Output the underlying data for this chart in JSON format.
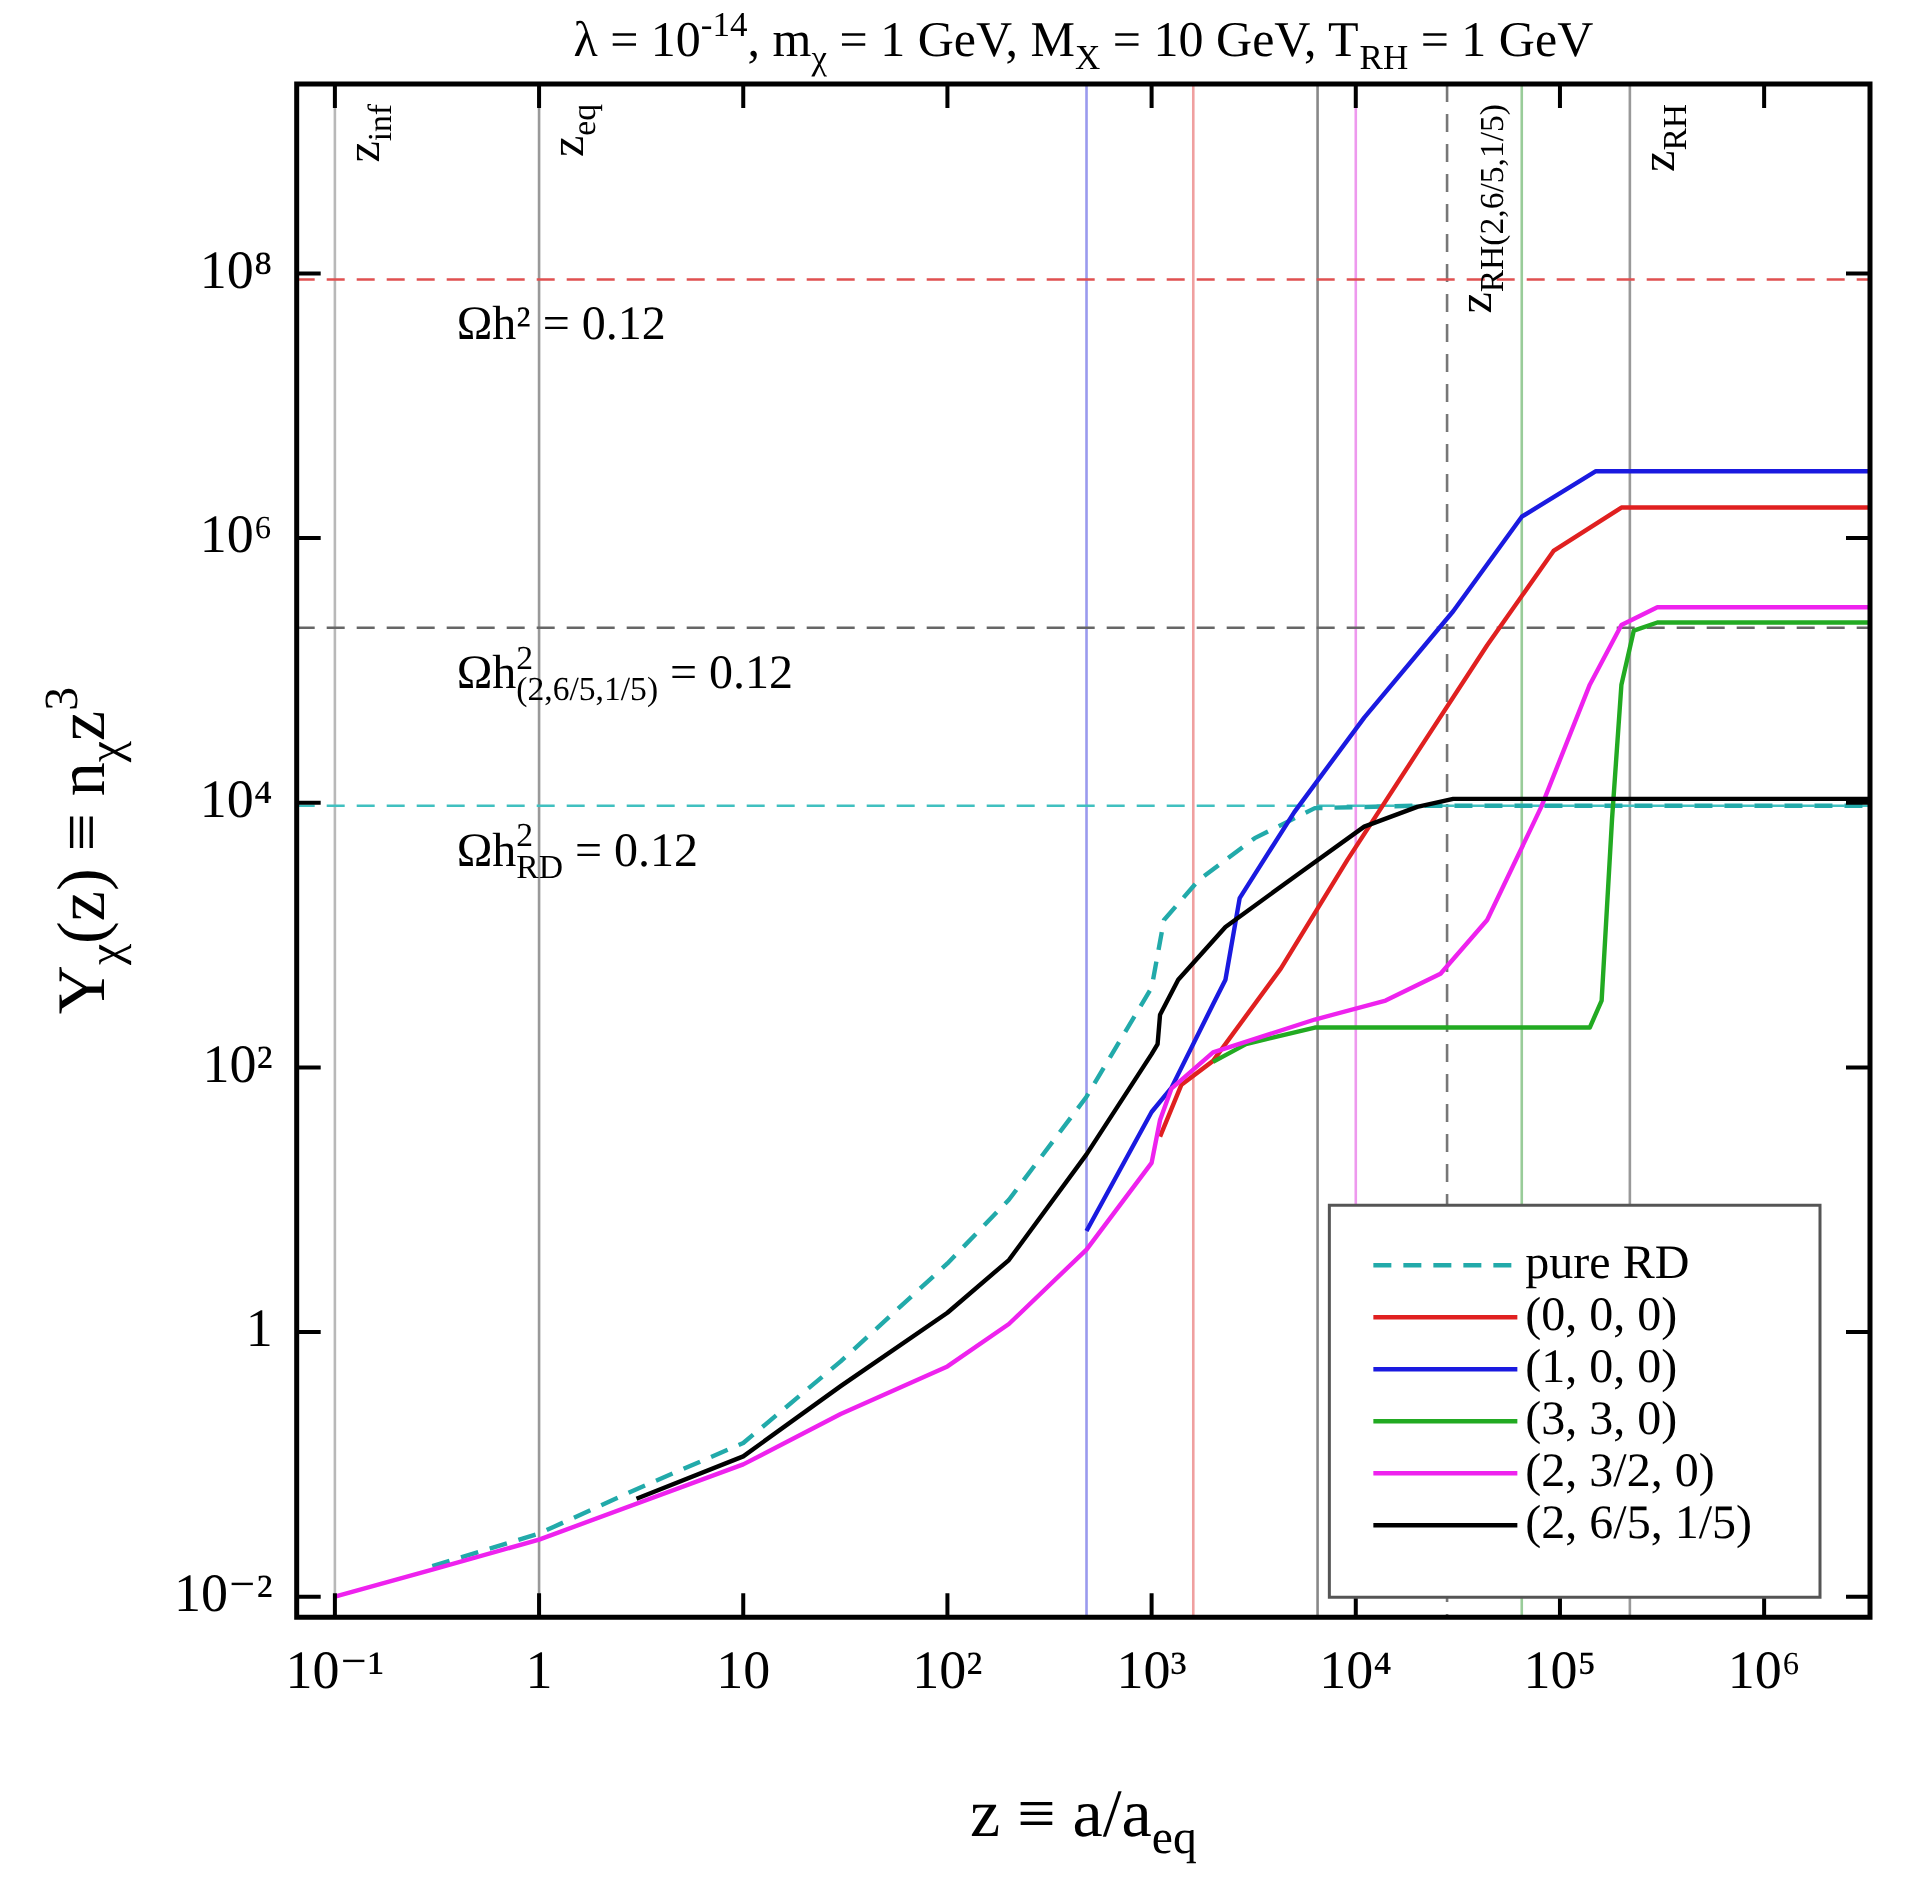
{
  "chart_data": {
    "type": "line",
    "title": "λ = 10$^{-14}$, m$_{χ}$ = 1 GeV, M$_{X}$ = 10 GeV, T$_{RH}$ = 1 GeV",
    "xlabel": "z ≡ a/a$_{eq}$",
    "ylabel": "Y$_{χ}$(z) ≡ n$_{χ}$z$^{3}$",
    "log": "xy",
    "marker": "none",
    "legend": "bottom right",
    "xlim": [
      0.065,
      3300000
    ],
    "ylim": [
      0.007,
      2700000000
    ],
    "xticks": [
      {
        "value": 0.1,
        "label": "10⁻¹"
      },
      1,
      10,
      {
        "value": 100,
        "label": "10²"
      },
      {
        "value": 1000,
        "label": "10³"
      },
      {
        "value": 10000,
        "label": "10⁴"
      },
      {
        "value": 100000,
        "label": "10⁵"
      },
      {
        "value": 1000000,
        "label": "10⁶"
      }
    ],
    "yticks": [
      {
        "value": 0.01,
        "label": "10⁻²"
      },
      1,
      {
        "value": 100,
        "label": "10²"
      },
      {
        "value": 10000,
        "label": "10⁴"
      },
      {
        "value": 1000000,
        "label": "10⁶"
      },
      {
        "value": 100000000,
        "label": "10⁸"
      }
    ],
    "series": [
      {
        "name": "pure RD",
        "color": "#22aaaa",
        "line_style": "dashed",
        "x": [
          0.3,
          1,
          3,
          10,
          30,
          100,
          200,
          480,
          1000,
          1150,
          1700,
          3200,
          6300,
          20000,
          3300000
        ],
        "values": [
          0.017,
          0.03,
          0.065,
          0.145,
          0.6,
          3.3,
          10,
          60,
          400,
          1300,
          2600,
          5400,
          9100,
          9500,
          9500
        ]
      },
      {
        "name": "(0, 0, 0)",
        "color": "#e02020",
        "line_style": "solid",
        "x": [
          1100,
          1400,
          2000,
          4300,
          9100,
          20000,
          44000,
          93000,
          200000,
          3300000
        ],
        "values": [
          30,
          74,
          112,
          560,
          3700,
          24000,
          155000,
          800000,
          1700000,
          1700000
        ]
      },
      {
        "name": "(1, 0, 0)",
        "color": "#1a1ae0",
        "line_style": "solid",
        "x": [
          480,
          1000,
          1250,
          2000,
          2300,
          2700,
          5000,
          11000,
          30000,
          65000,
          150000,
          3300000
        ],
        "values": [
          5.8,
          46,
          70,
          300,
          460,
          1900,
          8500,
          44000,
          280000,
          1450000,
          3200000,
          3200000
        ]
      },
      {
        "name": "(3, 3, 0)",
        "color": "#22aa22",
        "line_style": "solid",
        "x": [
          2000,
          2900,
          6300,
          140000,
          160000,
          180000,
          200000,
          230000,
          300000,
          3300000
        ],
        "values": [
          110,
          150,
          200,
          200,
          320,
          7600,
          78000,
          200000,
          230000,
          230000
        ]
      },
      {
        "name": "(2, 3/2, 0)",
        "color": "#ee22ee",
        "line_style": "solid",
        "x": [
          0.1,
          0.3,
          1,
          10,
          30,
          100,
          200,
          480,
          1000,
          1100,
          1250,
          2000,
          6300,
          14000,
          26000,
          44000,
          81000,
          140000,
          200000,
          300000,
          3300000
        ],
        "values": [
          0.01,
          0.016,
          0.027,
          0.1,
          0.24,
          0.55,
          1.15,
          4.2,
          19,
          40,
          69,
          130,
          230,
          320,
          510,
          1300,
          9300,
          78000,
          220000,
          300000,
          300000
        ]
      },
      {
        "name": "(2, 6/5, 1/5)",
        "color": "#000000",
        "line_style": "solid",
        "x": [
          3,
          10,
          30,
          100,
          200,
          480,
          1000,
          1070,
          1100,
          1350,
          2300,
          5400,
          11000,
          20000,
          30000,
          3300000
        ],
        "values": [
          0.055,
          0.115,
          0.39,
          1.4,
          3.5,
          22,
          126,
          150,
          250,
          460,
          1150,
          3000,
          6600,
          9300,
          10700,
          10700
        ]
      }
    ],
    "ref_lines": [
      {
        "axis": "x",
        "value": 0.1,
        "label": "z$_{inf}$",
        "color": "#b8b8b8",
        "line_style": "solid"
      },
      {
        "axis": "x",
        "value": 1,
        "label": "z$_{eq}$",
        "color": "#999999",
        "line_style": "solid"
      },
      {
        "axis": "x",
        "value": 480,
        "color": "#9a9aee",
        "line_style": "solid"
      },
      {
        "axis": "x",
        "value": 1600,
        "color": "#f0a0a0",
        "line_style": "solid"
      },
      {
        "axis": "x",
        "value": 6500,
        "color": "#888888",
        "line_style": "solid"
      },
      {
        "axis": "x",
        "value": 10000,
        "color": "#ee99ee",
        "line_style": "solid"
      },
      {
        "axis": "x",
        "value": 28000,
        "label": "z$_{RH(2,6/5,1/5)}$",
        "color": "#777777",
        "line_style": "dashed"
      },
      {
        "axis": "x",
        "value": 65000,
        "color": "#99cc99",
        "line_style": "solid"
      },
      {
        "axis": "x",
        "value": 220000,
        "label": "z$_{RH}$",
        "color": "#999999",
        "line_style": "solid"
      },
      {
        "axis": "y",
        "value": 90000000,
        "color": "#e05050",
        "line_style": "dashed"
      },
      {
        "axis": "y",
        "value": 210000,
        "color": "#666666",
        "line_style": "dashed"
      },
      {
        "axis": "y",
        "value": 9500,
        "color": "#40c0c0",
        "line_style": "dashed"
      }
    ],
    "annotations": [
      {
        "text": "Ωh² = 0.12",
        "y": 90000000
      },
      {
        "text": "Ωh$^{2}$$_{(2,6/5,1/5)}$ = 0.12",
        "y": 210000
      },
      {
        "text": "Ωh$^{2}$$_{RD}$ = 0.12",
        "y": 9500
      }
    ]
  }
}
